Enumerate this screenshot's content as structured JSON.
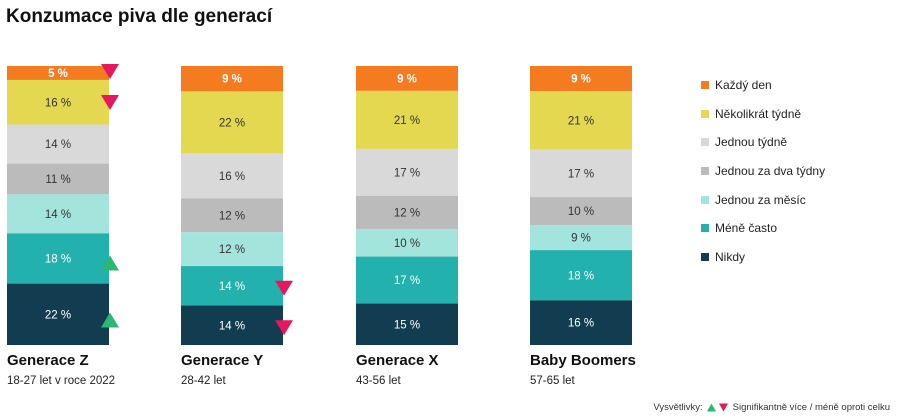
{
  "title": "Konzumace piva dle generací",
  "chart_data": {
    "type": "stacked-bar",
    "value_unit": "%",
    "categories": [
      {
        "key": "kazdy",
        "name": "Každý den",
        "color": "#f47b20"
      },
      {
        "key": "nekolikrat",
        "name": "Několikrát týdně",
        "color": "#e3d84f"
      },
      {
        "key": "tyden",
        "name": "Jednou týdně",
        "color": "#d9d9d9"
      },
      {
        "key": "dvatydny",
        "name": "Jednou za dva týdny",
        "color": "#bbbbbb"
      },
      {
        "key": "mesic",
        "name": "Jednou za měsíc",
        "color": "#a3e4dc"
      },
      {
        "key": "mene",
        "name": "Méně často",
        "color": "#22b1ad"
      },
      {
        "key": "nikdy",
        "name": "Nikdy",
        "color": "#123c50"
      }
    ],
    "groups": [
      {
        "name": "Generace Z",
        "subtitle": "18-27 let v roce 2022",
        "values": [
          5,
          16,
          14,
          11,
          14,
          18,
          22
        ],
        "labels": [
          "5 %",
          "16 %",
          "14 %",
          "11 %",
          "14 %",
          "18 %",
          "22 %"
        ],
        "significance": [
          -1,
          -1,
          0,
          0,
          0,
          1,
          1
        ]
      },
      {
        "name": "Generace Y",
        "subtitle": "28-42 let",
        "values": [
          9,
          22,
          16,
          12,
          12,
          14,
          14
        ],
        "labels": [
          "9 %",
          "22 %",
          "16 %",
          "12 %",
          "12 %",
          "14 %",
          "14 %"
        ],
        "significance": [
          0,
          0,
          0,
          0,
          0,
          -1,
          -1
        ]
      },
      {
        "name": "Generace X",
        "subtitle": "43-56 let",
        "values": [
          9,
          21,
          17,
          12,
          10,
          17,
          15
        ],
        "labels": [
          "9 %",
          "21 %",
          "17 %",
          "12 %",
          "10 %",
          "17 %",
          "15 %"
        ],
        "significance": [
          0,
          0,
          0,
          0,
          0,
          0,
          0
        ]
      },
      {
        "name": "Baby Boomers",
        "subtitle": "57-65 let",
        "values": [
          9,
          21,
          17,
          10,
          9,
          18,
          16
        ],
        "labels": [
          "9 %",
          "21 %",
          "17 %",
          "10 %",
          "9 %",
          "18 %",
          "16 %"
        ],
        "significance": [
          0,
          0,
          0,
          0,
          0,
          0,
          0
        ]
      }
    ],
    "significance_colors": {
      "up": "#2bb673",
      "down": "#e5175e"
    }
  },
  "footnote": {
    "prefix": "Vysvětlivky:",
    "text": "Signifikantně více / méně oproti celku"
  }
}
